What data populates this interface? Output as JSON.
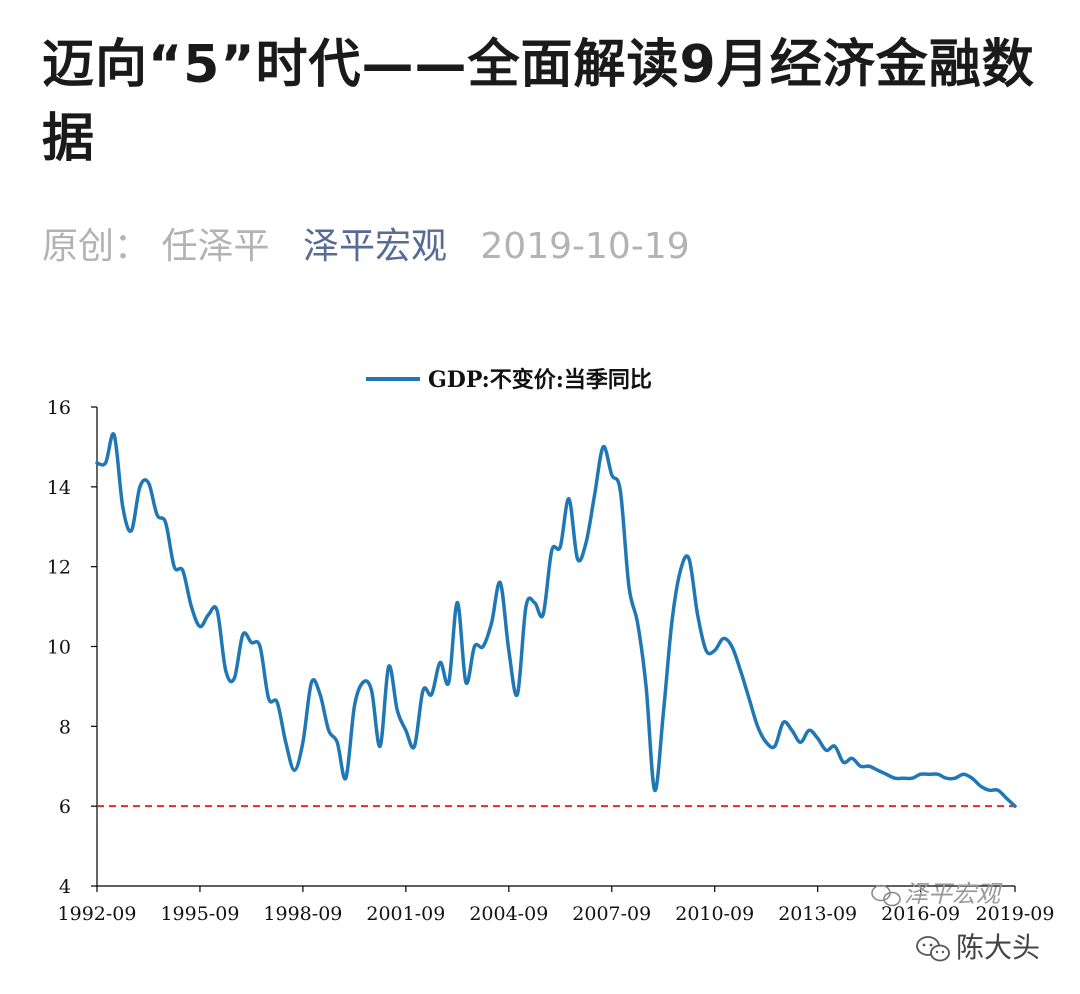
{
  "article": {
    "title": "迈向“5”时代——全面解读9月经济金融数据",
    "original_label": "原创：",
    "author": "任泽平",
    "account": "泽平宏观",
    "date": "2019-10-19"
  },
  "watermark": {
    "chart_mark": "泽平宏观",
    "repost": "陈大头"
  },
  "colors": {
    "line": "#1f78b4",
    "reference": "#d73027",
    "account_link": "#576b95"
  },
  "chart_data": {
    "type": "line",
    "title": "",
    "legend": "GDP:不变价:当季同比",
    "legend_position": "top-center",
    "xlabel": "",
    "ylabel": "",
    "ylim": [
      4,
      16
    ],
    "yticks": [
      4,
      6,
      8,
      10,
      12,
      14,
      16
    ],
    "xticks": [
      "1992-09",
      "1995-09",
      "1998-09",
      "2001-09",
      "2004-09",
      "2007-09",
      "2010-09",
      "2013-09",
      "2016-09",
      "2019-09"
    ],
    "reference_line": 6,
    "series": [
      {
        "name": "GDP:不变价:当季同比",
        "x_start": "1992-09",
        "frequency": "quarterly",
        "values": [
          14.6,
          14.6,
          15.3,
          13.5,
          12.9,
          14.0,
          14.1,
          13.3,
          13.1,
          12.0,
          11.9,
          11.0,
          10.5,
          10.8,
          10.9,
          9.4,
          9.2,
          10.3,
          10.1,
          10.0,
          8.7,
          8.6,
          7.6,
          6.9,
          7.6,
          9.1,
          8.8,
          7.9,
          7.6,
          6.7,
          8.5,
          9.1,
          8.9,
          7.5,
          9.5,
          8.4,
          7.9,
          7.5,
          8.9,
          8.8,
          9.6,
          9.1,
          11.1,
          9.1,
          10.0,
          10.0,
          10.6,
          11.6,
          9.9,
          8.8,
          11.0,
          11.1,
          10.8,
          12.4,
          12.5,
          13.7,
          12.2,
          12.6,
          13.8,
          15.0,
          14.3,
          13.9,
          11.5,
          10.6,
          9.0,
          6.4,
          8.3,
          10.6,
          11.9,
          12.2,
          10.8,
          9.9,
          9.9,
          10.2,
          10.0,
          9.4,
          8.7,
          8.0,
          7.6,
          7.5,
          8.1,
          7.9,
          7.6,
          7.9,
          7.7,
          7.4,
          7.5,
          7.1,
          7.2,
          7.0,
          7.0,
          6.9,
          6.8,
          6.7,
          6.7,
          6.7,
          6.8,
          6.8,
          6.8,
          6.7,
          6.7,
          6.8,
          6.7,
          6.5,
          6.4,
          6.4,
          6.2,
          6.0
        ]
      }
    ]
  }
}
